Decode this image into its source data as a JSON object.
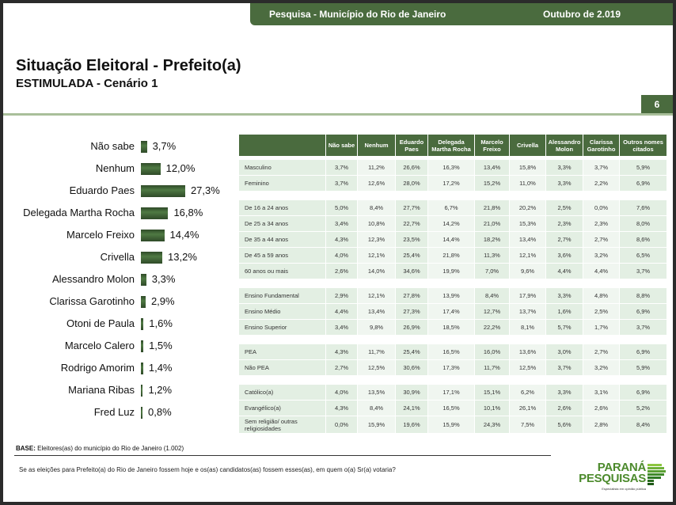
{
  "header": {
    "survey": "Pesquisa - Município do Rio de Janeiro",
    "date": "Outubro de 2.019"
  },
  "title": "Situação Eleitoral - Prefeito(a)",
  "subtitle": "ESTIMULADA - Cenário 1",
  "page_number": "6",
  "colors": {
    "brand_green": "#4a6b3e",
    "bar": "#3d6033",
    "row_a": "#e3efe3",
    "row_b": "#f0f6f0",
    "logo_green": "#4c8a2c"
  },
  "chart_data": {
    "type": "bar",
    "orientation": "horizontal",
    "categories": [
      "Não sabe",
      "Nenhum",
      "Eduardo Paes",
      "Delegada Martha Rocha",
      "Marcelo Freixo",
      "Crivella",
      "Alessandro Molon",
      "Clarissa Garotinho",
      "Otoni de Paula",
      "Marcelo Calero",
      "Rodrigo Amorim",
      "Mariana Ribas",
      "Fred Luz"
    ],
    "values": [
      3.7,
      12.0,
      27.3,
      16.8,
      14.4,
      13.2,
      3.3,
      2.9,
      1.6,
      1.5,
      1.4,
      1.2,
      0.8
    ],
    "labels": [
      "3,7%",
      "12,0%",
      "27,3%",
      "16,8%",
      "14,4%",
      "13,2%",
      "3,3%",
      "2,9%",
      "1,6%",
      "1,5%",
      "1,4%",
      "1,2%",
      "0,8%"
    ],
    "unit": "%"
  },
  "table": {
    "headers": [
      "Não sabe",
      "Nenhum",
      "Eduardo Paes",
      "Delegada Martha Rocha",
      "Marcelo Freixo",
      "Crivella",
      "Alessandro Molon",
      "Clarissa Garotinho",
      "Outros nomes citados"
    ],
    "groups": [
      {
        "rows": [
          {
            "label": "Masculino",
            "values": [
              "3,7%",
              "11,2%",
              "26,6%",
              "16,3%",
              "13,4%",
              "15,8%",
              "3,3%",
              "3,7%",
              "5,9%"
            ]
          },
          {
            "label": "Feminino",
            "values": [
              "3,7%",
              "12,6%",
              "28,0%",
              "17,2%",
              "15,2%",
              "11,0%",
              "3,3%",
              "2,2%",
              "6,9%"
            ]
          }
        ]
      },
      {
        "rows": [
          {
            "label": "De 16 a 24 anos",
            "values": [
              "5,0%",
              "8,4%",
              "27,7%",
              "6,7%",
              "21,8%",
              "20,2%",
              "2,5%",
              "0,0%",
              "7,6%"
            ]
          },
          {
            "label": "De 25 a 34 anos",
            "values": [
              "3,4%",
              "10,8%",
              "22,7%",
              "14,2%",
              "21,0%",
              "15,3%",
              "2,3%",
              "2,3%",
              "8,0%"
            ]
          },
          {
            "label": "De 35 a 44 anos",
            "values": [
              "4,3%",
              "12,3%",
              "23,5%",
              "14,4%",
              "18,2%",
              "13,4%",
              "2,7%",
              "2,7%",
              "8,6%"
            ]
          },
          {
            "label": "De 45 a 59 anos",
            "values": [
              "4,0%",
              "12,1%",
              "25,4%",
              "21,8%",
              "11,3%",
              "12,1%",
              "3,6%",
              "3,2%",
              "6,5%"
            ]
          },
          {
            "label": "60 anos ou mais",
            "values": [
              "2,6%",
              "14,0%",
              "34,6%",
              "19,9%",
              "7,0%",
              "9,6%",
              "4,4%",
              "4,4%",
              "3,7%"
            ]
          }
        ]
      },
      {
        "rows": [
          {
            "label": "Ensino Fundamental",
            "values": [
              "2,9%",
              "12,1%",
              "27,8%",
              "13,9%",
              "8,4%",
              "17,9%",
              "3,3%",
              "4,8%",
              "8,8%"
            ]
          },
          {
            "label": "Ensino Médio",
            "values": [
              "4,4%",
              "13,4%",
              "27,3%",
              "17,4%",
              "12,7%",
              "13,7%",
              "1,6%",
              "2,5%",
              "6,9%"
            ]
          },
          {
            "label": "Ensino Superior",
            "values": [
              "3,4%",
              "9,8%",
              "26,9%",
              "18,5%",
              "22,2%",
              "8,1%",
              "5,7%",
              "1,7%",
              "3,7%"
            ]
          }
        ]
      },
      {
        "rows": [
          {
            "label": "PEA",
            "values": [
              "4,3%",
              "11,7%",
              "25,4%",
              "16,5%",
              "16,0%",
              "13,6%",
              "3,0%",
              "2,7%",
              "6,9%"
            ]
          },
          {
            "label": "Não PEA",
            "values": [
              "2,7%",
              "12,5%",
              "30,6%",
              "17,3%",
              "11,7%",
              "12,5%",
              "3,7%",
              "3,2%",
              "5,9%"
            ]
          }
        ]
      },
      {
        "rows": [
          {
            "label": "Católico(a)",
            "values": [
              "4,0%",
              "13,5%",
              "30,9%",
              "17,1%",
              "15,1%",
              "6,2%",
              "3,3%",
              "3,1%",
              "6,9%"
            ]
          },
          {
            "label": "Evangélico(a)",
            "values": [
              "4,3%",
              "8,4%",
              "24,1%",
              "16,5%",
              "10,1%",
              "26,1%",
              "2,6%",
              "2,6%",
              "5,2%"
            ]
          },
          {
            "label": "Sem religião/ outras religiosidades",
            "values": [
              "0,0%",
              "15,9%",
              "19,6%",
              "15,9%",
              "24,3%",
              "7,5%",
              "5,6%",
              "2,8%",
              "8,4%"
            ]
          }
        ]
      }
    ]
  },
  "footer": {
    "base_label": "BASE:",
    "base_text": "Eleitores(as) do município do Rio de Janeiro (1.002)",
    "question": "Se as eleições para Prefeito(a) do Rio de Janeiro fossem hoje e os(as) candidatos(as) fossem esses(as), em quem o(a) Sr(a) votaria?"
  },
  "logo": {
    "line1": "PARANÁ",
    "line2": "PESQUISAS",
    "tagline": "Especialista em opinião pública"
  }
}
